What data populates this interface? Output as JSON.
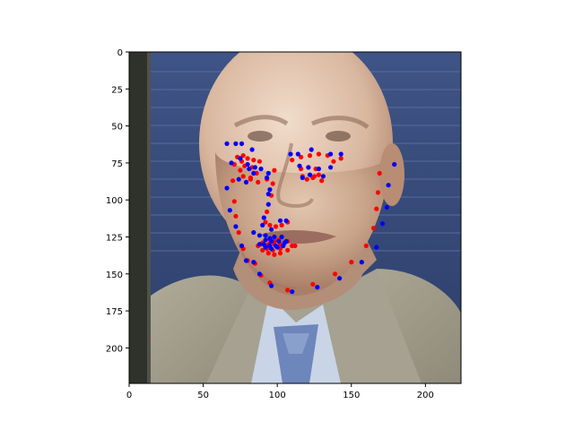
{
  "chart_data": {
    "type": "scatter",
    "title": "",
    "xlabel": "",
    "ylabel": "",
    "xlim": [
      0,
      224
    ],
    "ylim": [
      224,
      0
    ],
    "x_ticks": [
      0,
      50,
      100,
      150,
      200
    ],
    "y_ticks": [
      0,
      25,
      50,
      75,
      100,
      125,
      150,
      175,
      200
    ],
    "background": "face photograph (image axis, y inverted)",
    "colors": {
      "predicted": "#ff0000",
      "ground_truth": "#0000ff",
      "photo_backdrop": "#35497a",
      "photo_suit": "#a09b8a",
      "photo_skin": "#c8a58c"
    },
    "series": [
      {
        "name": "red landmarks",
        "color": "#ff0000",
        "points": [
          [
            70,
            87
          ],
          [
            71,
            101
          ],
          [
            72,
            111
          ],
          [
            74,
            122
          ],
          [
            77,
            133
          ],
          [
            80,
            141
          ],
          [
            85,
            143
          ],
          [
            89,
            151
          ],
          [
            95,
            156
          ],
          [
            107,
            161
          ],
          [
            124,
            157
          ],
          [
            139,
            150
          ],
          [
            150,
            142
          ],
          [
            160,
            131
          ],
          [
            165,
            119
          ],
          [
            167,
            106
          ],
          [
            168,
            95
          ],
          [
            169,
            82
          ],
          [
            73,
            71
          ],
          [
            77,
            70
          ],
          [
            80,
            72
          ],
          [
            84,
            73
          ],
          [
            88,
            74
          ],
          [
            110,
            73
          ],
          [
            116,
            71
          ],
          [
            122,
            70
          ],
          [
            128,
            69
          ],
          [
            134,
            70
          ],
          [
            98,
            80
          ],
          [
            97,
            89
          ],
          [
            96,
            97
          ],
          [
            93,
            108
          ],
          [
            92,
            115
          ],
          [
            95,
            117
          ],
          [
            99,
            118
          ],
          [
            103,
            117
          ],
          [
            107,
            115
          ],
          [
            75,
            80
          ],
          [
            78,
            77
          ],
          [
            83,
            78
          ],
          [
            86,
            82
          ],
          [
            82,
            85
          ],
          [
            77,
            84
          ],
          [
            116,
            79
          ],
          [
            121,
            78
          ],
          [
            126,
            79
          ],
          [
            128,
            83
          ],
          [
            124,
            85
          ],
          [
            117,
            84
          ],
          [
            87,
            131
          ],
          [
            90,
            129
          ],
          [
            95,
            127
          ],
          [
            98,
            128
          ],
          [
            101,
            127
          ],
          [
            107,
            128
          ],
          [
            112,
            131
          ],
          [
            107,
            134
          ],
          [
            102,
            136
          ],
          [
            98,
            137
          ],
          [
            94,
            136
          ],
          [
            90,
            134
          ],
          [
            89,
            130
          ],
          [
            94,
            130
          ],
          [
            98,
            130
          ],
          [
            102,
            130
          ],
          [
            110,
            131
          ],
          [
            102,
            133
          ],
          [
            97,
            134
          ],
          [
            93,
            133
          ],
          [
            71,
            76
          ],
          [
            76,
            74
          ],
          [
            82,
            86
          ],
          [
            87,
            88
          ],
          [
            93,
            86
          ],
          [
            120,
            86
          ],
          [
            125,
            84
          ],
          [
            130,
            87
          ],
          [
            138,
            74
          ],
          [
            143,
            72
          ]
        ]
      },
      {
        "name": "blue landmarks",
        "color": "#0000ff",
        "points": [
          [
            66,
            92
          ],
          [
            68,
            107
          ],
          [
            72,
            118
          ],
          [
            76,
            131
          ],
          [
            79,
            141
          ],
          [
            84,
            142
          ],
          [
            88,
            150
          ],
          [
            96,
            158
          ],
          [
            110,
            162
          ],
          [
            127,
            159
          ],
          [
            142,
            153
          ],
          [
            157,
            142
          ],
          [
            167,
            132
          ],
          [
            171,
            116
          ],
          [
            174,
            105
          ],
          [
            175,
            90
          ],
          [
            179,
            76
          ],
          [
            66,
            62
          ],
          [
            72,
            62
          ],
          [
            76,
            62
          ],
          [
            83,
            66
          ],
          [
            109,
            69
          ],
          [
            114,
            69
          ],
          [
            123,
            66
          ],
          [
            136,
            69
          ],
          [
            143,
            69
          ],
          [
            94,
            82
          ],
          [
            95,
            93
          ],
          [
            94,
            103
          ],
          [
            91,
            112
          ],
          [
            90,
            117
          ],
          [
            96,
            120
          ],
          [
            102,
            114
          ],
          [
            106,
            114
          ],
          [
            69,
            75
          ],
          [
            75,
            72
          ],
          [
            80,
            76
          ],
          [
            85,
            78
          ],
          [
            89,
            79
          ],
          [
            81,
            79
          ],
          [
            115,
            77
          ],
          [
            121,
            78
          ],
          [
            128,
            79
          ],
          [
            136,
            78
          ],
          [
            84,
            122
          ],
          [
            88,
            124
          ],
          [
            92,
            124
          ],
          [
            95,
            126
          ],
          [
            98,
            125
          ],
          [
            103,
            125
          ],
          [
            106,
            128
          ],
          [
            104,
            131
          ],
          [
            100,
            132
          ],
          [
            96,
            133
          ],
          [
            92,
            132
          ],
          [
            88,
            130
          ],
          [
            92,
            127
          ],
          [
            96,
            128
          ],
          [
            101,
            128
          ],
          [
            105,
            129
          ],
          [
            99,
            131
          ],
          [
            95,
            131
          ],
          [
            91,
            130
          ],
          [
            74,
            86
          ],
          [
            79,
            88
          ],
          [
            84,
            82
          ],
          [
            93,
            85
          ],
          [
            117,
            85
          ],
          [
            122,
            83
          ],
          [
            131,
            84
          ],
          [
            94,
            96
          ],
          [
            96,
            128
          ]
        ]
      }
    ]
  }
}
